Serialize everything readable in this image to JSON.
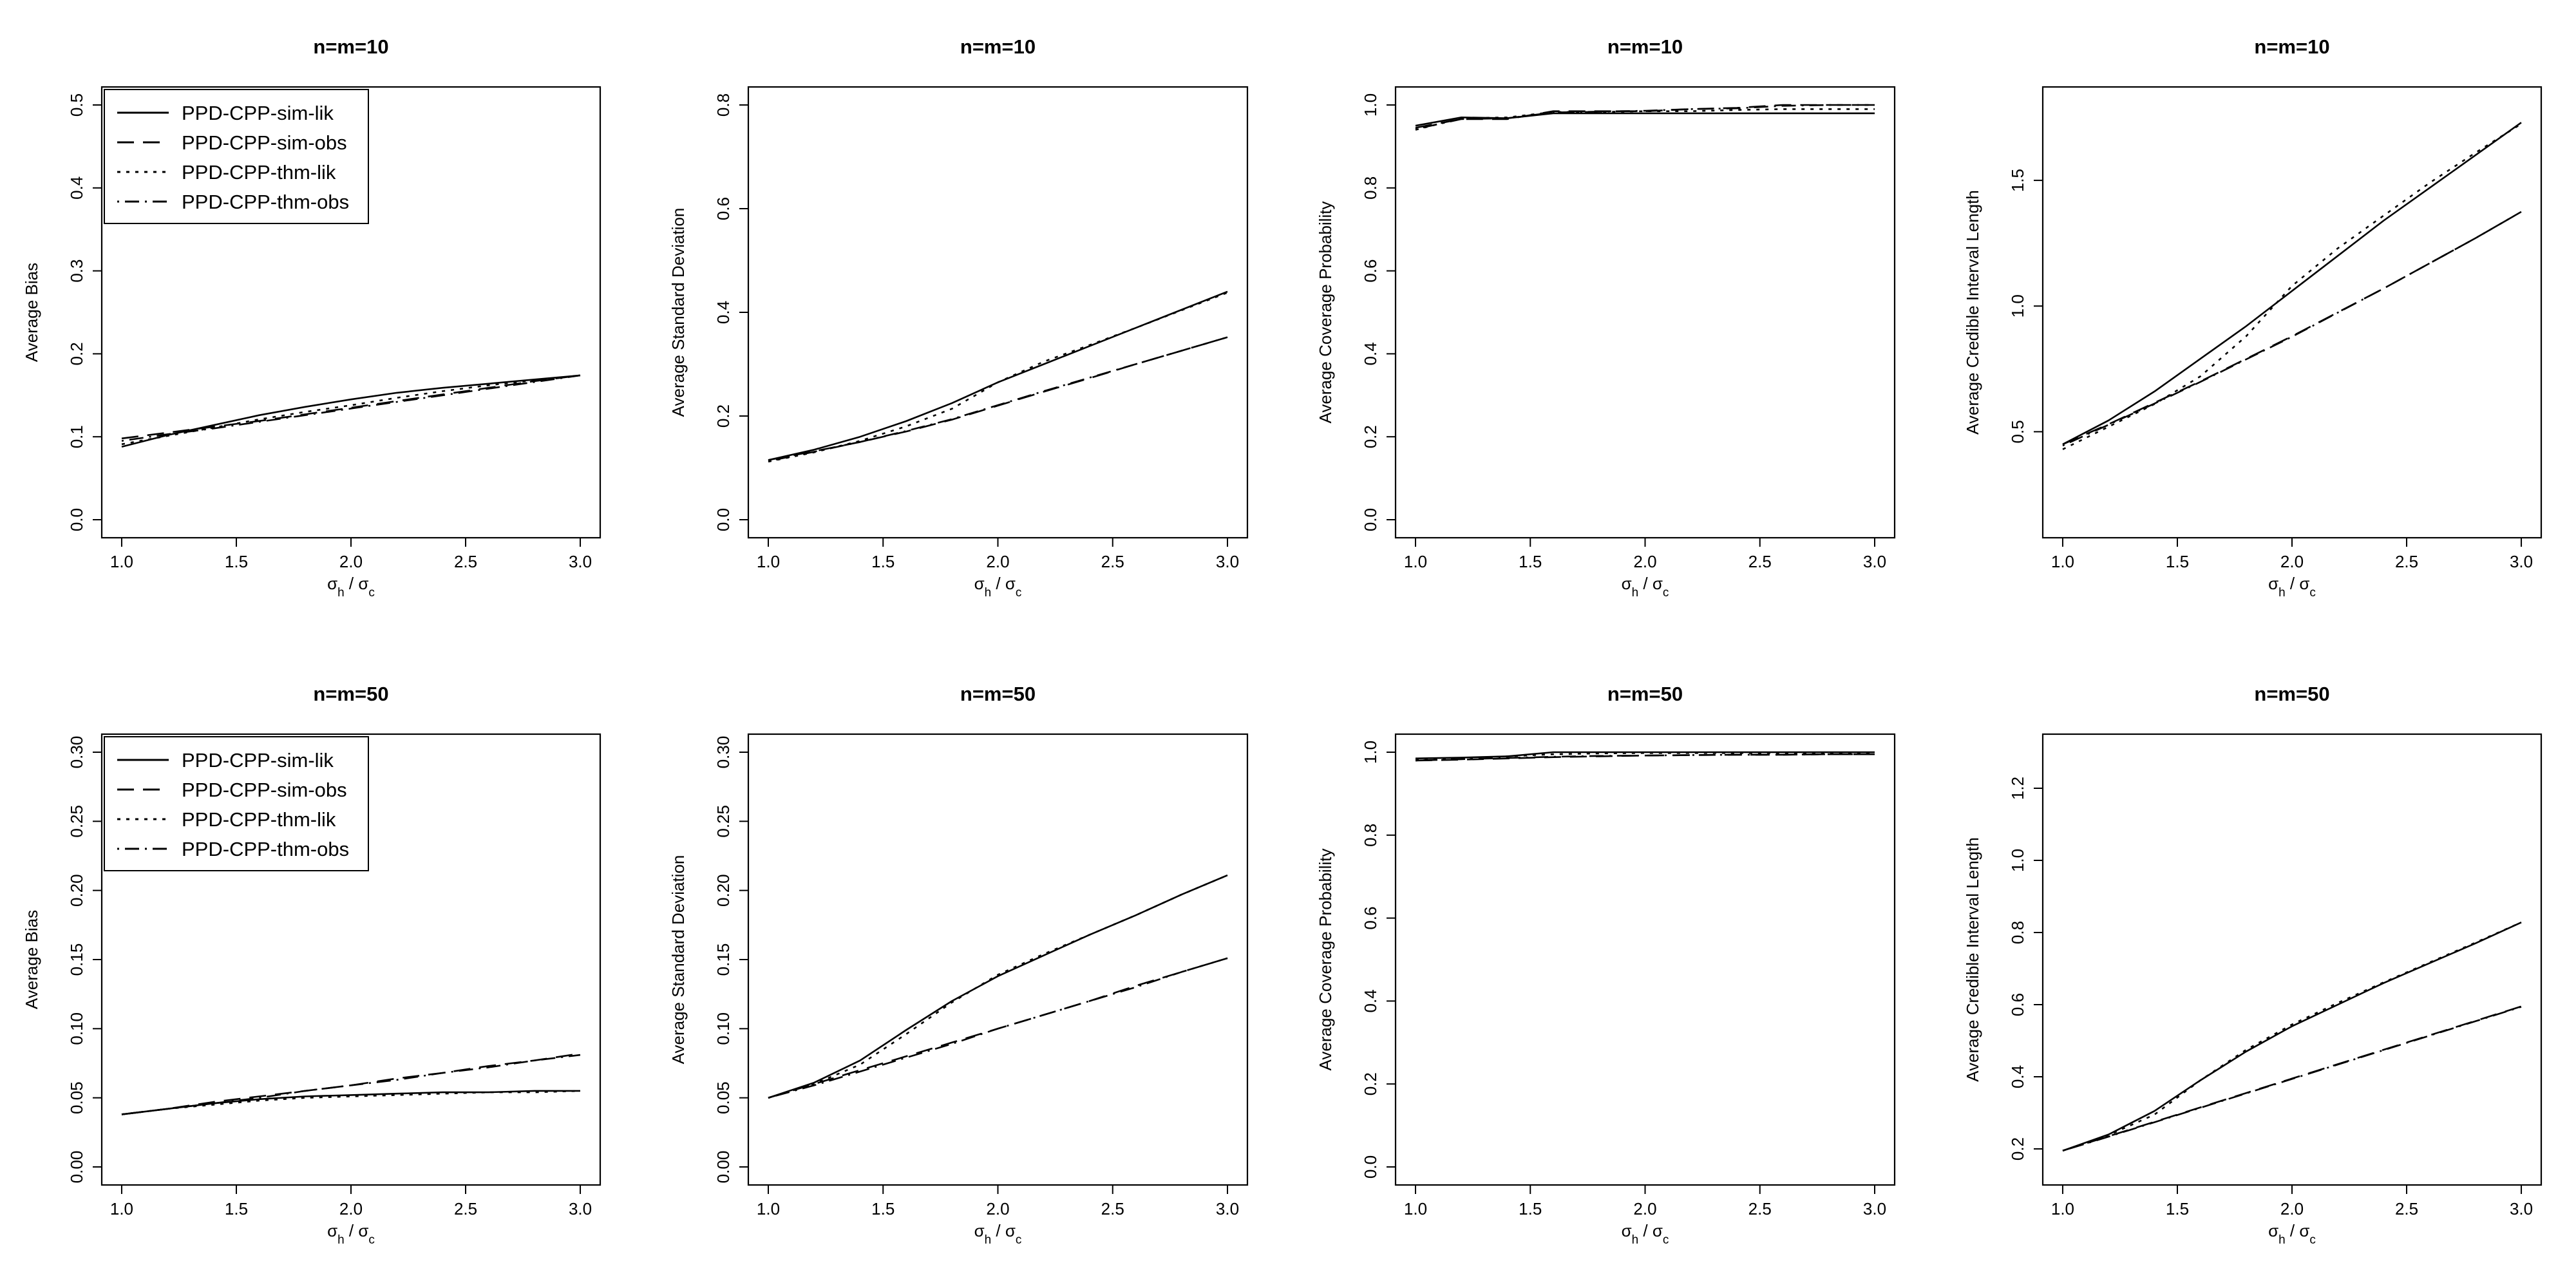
{
  "figure": {
    "charts": [
      {
        "title": "n=m=10",
        "ylabel": "Average Bias",
        "xlabel": "σ_h / σ_c"
      },
      {
        "title": "n=m=10",
        "ylabel": "Average Standard Deviation",
        "xlabel": "σ_h / σ_c"
      },
      {
        "title": "n=m=10",
        "ylabel": "Average Coverage Probability",
        "xlabel": "σ_h / σ_c"
      },
      {
        "title": "n=m=10",
        "ylabel": "Average Credible Interval Length",
        "xlabel": "σ_h / σ_c"
      },
      {
        "title": "n=m=50",
        "ylabel": "Average Bias",
        "xlabel": "σ_h / σ_c"
      },
      {
        "title": "n=m=50",
        "ylabel": "Average Standard Deviation",
        "xlabel": "σ_h / σ_c"
      },
      {
        "title": "n=m=50",
        "ylabel": "Average Coverage Probability",
        "xlabel": "σ_h / σ_c"
      },
      {
        "title": "n=m=50",
        "ylabel": "Average Credible Interval Length",
        "xlabel": "σ_h / σ_c"
      }
    ]
  },
  "chart_data": [
    {
      "type": "line",
      "title": "n=m=10",
      "xlabel": "σ_h / σ_c",
      "ylabel": "Average Bias",
      "xlim": [
        1,
        3
      ],
      "ylim": [
        0,
        0.5
      ],
      "xticks": [
        "1.0",
        "1.5",
        "2.0",
        "2.5",
        "3.0"
      ],
      "yticks": [
        "0.0",
        "0.1",
        "0.2",
        "0.3",
        "0.4",
        "0.5"
      ],
      "legend": "top-left",
      "x": [
        1.0,
        1.2,
        1.4,
        1.6,
        1.8,
        2.0,
        2.2,
        2.4,
        2.6,
        2.8,
        3.0
      ],
      "series": [
        {
          "name": "PPD-CPP-sim-lik",
          "dash": "solid",
          "values": [
            0.088,
            0.102,
            0.114,
            0.126,
            0.136,
            0.145,
            0.153,
            0.159,
            0.164,
            0.169,
            0.174
          ]
        },
        {
          "name": "PPD-CPP-sim-obs",
          "dash": "dashed",
          "values": [
            0.098,
            0.105,
            0.112,
            0.119,
            0.127,
            0.135,
            0.143,
            0.151,
            0.159,
            0.167,
            0.174
          ]
        },
        {
          "name": "PPD-CPP-thm-lik",
          "dash": "dotted",
          "values": [
            0.091,
            0.101,
            0.111,
            0.121,
            0.13,
            0.138,
            0.147,
            0.155,
            0.162,
            0.168,
            0.174
          ]
        },
        {
          "name": "PPD-CPP-thm-obs",
          "dash": "dotdash",
          "values": [
            0.095,
            0.103,
            0.11,
            0.118,
            0.126,
            0.134,
            0.142,
            0.15,
            0.158,
            0.166,
            0.174
          ]
        }
      ]
    },
    {
      "type": "line",
      "title": "n=m=10",
      "xlabel": "σ_h / σ_c",
      "ylabel": "Average Standard Deviation",
      "xlim": [
        1,
        3
      ],
      "ylim": [
        0,
        0.8
      ],
      "xticks": [
        "1.0",
        "1.5",
        "2.0",
        "2.5",
        "3.0"
      ],
      "yticks": [
        "0.0",
        "0.2",
        "0.4",
        "0.6",
        "0.8"
      ],
      "legend": "none",
      "x": [
        1.0,
        1.2,
        1.4,
        1.6,
        1.8,
        2.0,
        2.2,
        2.4,
        2.6,
        2.8,
        3.0
      ],
      "series": [
        {
          "name": "PPD-CPP-sim-lik",
          "dash": "solid",
          "values": [
            0.115,
            0.135,
            0.16,
            0.19,
            0.225,
            0.265,
            0.3,
            0.335,
            0.37,
            0.405,
            0.44
          ]
        },
        {
          "name": "PPD-CPP-sim-obs",
          "dash": "dashed",
          "values": [
            0.115,
            0.132,
            0.15,
            0.17,
            0.193,
            0.22,
            0.247,
            0.273,
            0.3,
            0.326,
            0.352
          ]
        },
        {
          "name": "PPD-CPP-thm-lik",
          "dash": "dotted",
          "values": [
            0.112,
            0.13,
            0.152,
            0.18,
            0.214,
            0.265,
            0.305,
            0.337,
            0.37,
            0.404,
            0.438
          ]
        },
        {
          "name": "PPD-CPP-thm-obs",
          "dash": "dotdash",
          "values": [
            0.113,
            0.131,
            0.15,
            0.171,
            0.194,
            0.221,
            0.248,
            0.274,
            0.3,
            0.326,
            0.352
          ]
        }
      ]
    },
    {
      "type": "line",
      "title": "n=m=10",
      "xlabel": "σ_h / σ_c",
      "ylabel": "Average Coverage Probability",
      "xlim": [
        1,
        3
      ],
      "ylim": [
        0,
        1
      ],
      "xticks": [
        "1.0",
        "1.5",
        "2.0",
        "2.5",
        "3.0"
      ],
      "yticks": [
        "0.0",
        "0.2",
        "0.4",
        "0.6",
        "0.8",
        "1.0"
      ],
      "legend": "none",
      "x": [
        1.0,
        1.2,
        1.4,
        1.6,
        1.8,
        2.0,
        2.2,
        2.4,
        2.6,
        2.8,
        3.0
      ],
      "series": [
        {
          "name": "PPD-CPP-sim-lik",
          "dash": "solid",
          "values": [
            0.95,
            0.97,
            0.968,
            0.98,
            0.98,
            0.98,
            0.98,
            0.98,
            0.98,
            0.98,
            0.98
          ]
        },
        {
          "name": "PPD-CPP-sim-obs",
          "dash": "dashed",
          "values": [
            0.945,
            0.966,
            0.966,
            0.985,
            0.985,
            0.985,
            0.99,
            0.993,
            1.0,
            1.0,
            1.0
          ]
        },
        {
          "name": "PPD-CPP-thm-lik",
          "dash": "dotted",
          "values": [
            0.94,
            0.968,
            0.97,
            0.983,
            0.983,
            0.985,
            0.985,
            0.988,
            0.99,
            0.99,
            0.99
          ]
        },
        {
          "name": "PPD-CPP-thm-obs",
          "dash": "dotdash",
          "values": [
            0.942,
            0.966,
            0.968,
            0.982,
            0.984,
            0.986,
            0.99,
            0.992,
            0.998,
            1.0,
            1.0
          ]
        }
      ]
    },
    {
      "type": "line",
      "title": "n=m=10",
      "xlabel": "σ_h / σ_c",
      "ylabel": "Average Credible Interval Length",
      "xlim": [
        1,
        3
      ],
      "ylim": [
        0.15,
        1.8
      ],
      "xticks": [
        "1.0",
        "1.5",
        "2.0",
        "2.5",
        "3.0"
      ],
      "yticks": [
        "0.5",
        "1.0",
        "1.5"
      ],
      "legend": "none",
      "x": [
        1.0,
        1.2,
        1.4,
        1.6,
        1.8,
        2.0,
        2.2,
        2.4,
        2.6,
        2.8,
        3.0
      ],
      "series": [
        {
          "name": "PPD-CPP-sim-lik",
          "dash": "solid",
          "values": [
            0.45,
            0.545,
            0.66,
            0.79,
            0.92,
            1.06,
            1.2,
            1.34,
            1.47,
            1.6,
            1.73
          ]
        },
        {
          "name": "PPD-CPP-sim-obs",
          "dash": "dashed",
          "values": [
            0.45,
            0.53,
            0.615,
            0.7,
            0.79,
            0.88,
            0.975,
            1.07,
            1.17,
            1.27,
            1.375
          ]
        },
        {
          "name": "PPD-CPP-thm-lik",
          "dash": "dotted",
          "values": [
            0.43,
            0.52,
            0.61,
            0.72,
            0.88,
            1.08,
            1.23,
            1.36,
            1.49,
            1.61,
            1.725
          ]
        },
        {
          "name": "PPD-CPP-thm-obs",
          "dash": "dotdash",
          "values": [
            0.445,
            0.528,
            0.612,
            0.698,
            0.788,
            0.878,
            0.974,
            1.07,
            1.17,
            1.27,
            1.375
          ]
        }
      ]
    },
    {
      "type": "line",
      "title": "n=m=50",
      "xlabel": "σ_h / σ_c",
      "ylabel": "Average Bias",
      "xlim": [
        1,
        3
      ],
      "ylim": [
        0,
        0.3
      ],
      "xticks": [
        "1.0",
        "1.5",
        "2.0",
        "2.5",
        "3.0"
      ],
      "yticks": [
        "0.00",
        "0.05",
        "0.10",
        "0.15",
        "0.20",
        "0.25",
        "0.30"
      ],
      "legend": "top-left",
      "x": [
        1.0,
        1.2,
        1.4,
        1.6,
        1.8,
        2.0,
        2.2,
        2.4,
        2.6,
        2.8,
        3.0
      ],
      "series": [
        {
          "name": "PPD-CPP-sim-lik",
          "dash": "solid",
          "values": [
            0.038,
            0.042,
            0.046,
            0.049,
            0.051,
            0.052,
            0.053,
            0.054,
            0.054,
            0.055,
            0.055
          ]
        },
        {
          "name": "PPD-CPP-sim-obs",
          "dash": "dashed",
          "values": [
            0.038,
            0.042,
            0.047,
            0.051,
            0.055,
            0.059,
            0.064,
            0.068,
            0.073,
            0.077,
            0.082
          ]
        },
        {
          "name": "PPD-CPP-thm-lik",
          "dash": "dotted",
          "values": [
            0.038,
            0.042,
            0.045,
            0.048,
            0.05,
            0.051,
            0.052,
            0.053,
            0.054,
            0.054,
            0.055
          ]
        },
        {
          "name": "PPD-CPP-thm-obs",
          "dash": "dotdash",
          "values": [
            0.038,
            0.042,
            0.046,
            0.05,
            0.055,
            0.059,
            0.063,
            0.068,
            0.072,
            0.077,
            0.081
          ]
        }
      ]
    },
    {
      "type": "line",
      "title": "n=m=50",
      "xlabel": "σ_h / σ_c",
      "ylabel": "Average Standard Deviation",
      "xlim": [
        1,
        3
      ],
      "ylim": [
        0,
        0.3
      ],
      "xticks": [
        "1.0",
        "1.5",
        "2.0",
        "2.5",
        "3.0"
      ],
      "yticks": [
        "0.00",
        "0.05",
        "0.10",
        "0.15",
        "0.20",
        "0.25",
        "0.30"
      ],
      "legend": "none",
      "x": [
        1.0,
        1.2,
        1.4,
        1.6,
        1.8,
        2.0,
        2.2,
        2.4,
        2.6,
        2.8,
        3.0
      ],
      "series": [
        {
          "name": "PPD-CPP-sim-lik",
          "dash": "solid",
          "values": [
            0.05,
            0.061,
            0.077,
            0.099,
            0.12,
            0.138,
            0.153,
            0.168,
            0.182,
            0.197,
            0.211
          ]
        },
        {
          "name": "PPD-CPP-sim-obs",
          "dash": "dashed",
          "values": [
            0.05,
            0.06,
            0.07,
            0.08,
            0.09,
            0.1,
            0.11,
            0.12,
            0.131,
            0.141,
            0.151
          ]
        },
        {
          "name": "PPD-CPP-thm-lik",
          "dash": "dotted",
          "values": [
            0.05,
            0.06,
            0.074,
            0.096,
            0.119,
            0.139,
            0.154,
            0.168,
            0.182,
            0.197,
            0.211
          ]
        },
        {
          "name": "PPD-CPP-thm-obs",
          "dash": "dotdash",
          "values": [
            0.05,
            0.059,
            0.069,
            0.079,
            0.089,
            0.1,
            0.11,
            0.12,
            0.13,
            0.141,
            0.151
          ]
        }
      ]
    },
    {
      "type": "line",
      "title": "n=m=50",
      "xlabel": "σ_h / σ_c",
      "ylabel": "Average Coverage Probability",
      "xlim": [
        1,
        3
      ],
      "ylim": [
        0,
        1
      ],
      "xticks": [
        "1.0",
        "1.5",
        "2.0",
        "2.5",
        "3.0"
      ],
      "yticks": [
        "0.0",
        "0.2",
        "0.4",
        "0.6",
        "0.8",
        "1.0"
      ],
      "legend": "none",
      "x": [
        1.0,
        1.2,
        1.4,
        1.6,
        1.8,
        2.0,
        2.2,
        2.4,
        2.6,
        2.8,
        3.0
      ],
      "series": [
        {
          "name": "PPD-CPP-sim-lik",
          "dash": "solid",
          "values": [
            0.985,
            0.987,
            0.99,
            1.0,
            1.0,
            1.0,
            1.0,
            1.0,
            1.0,
            1.0,
            1.0
          ]
        },
        {
          "name": "PPD-CPP-sim-obs",
          "dash": "dashed",
          "values": [
            0.98,
            0.982,
            0.985,
            0.988,
            0.99,
            0.992,
            0.993,
            0.994,
            0.994,
            0.995,
            0.995
          ]
        },
        {
          "name": "PPD-CPP-thm-lik",
          "dash": "dotted",
          "values": [
            0.983,
            0.986,
            0.99,
            0.995,
            0.997,
            0.998,
            0.998,
            0.998,
            0.998,
            0.998,
            0.998
          ]
        },
        {
          "name": "PPD-CPP-thm-obs",
          "dash": "dotdash",
          "values": [
            0.98,
            0.983,
            0.986,
            0.989,
            0.991,
            0.992,
            0.993,
            0.994,
            0.994,
            0.995,
            0.995
          ]
        }
      ]
    },
    {
      "type": "line",
      "title": "n=m=50",
      "xlabel": "σ_h / σ_c",
      "ylabel": "Average Credible Interval Length",
      "xlim": [
        1,
        3
      ],
      "ylim": [
        0.15,
        1.3
      ],
      "xticks": [
        "1.0",
        "1.5",
        "2.0",
        "2.5",
        "3.0"
      ],
      "yticks": [
        "0.2",
        "0.4",
        "0.6",
        "0.8",
        "1.0",
        "1.2"
      ],
      "legend": "none",
      "x": [
        1.0,
        1.2,
        1.4,
        1.6,
        1.8,
        2.0,
        2.2,
        2.4,
        2.6,
        2.8,
        3.0
      ],
      "series": [
        {
          "name": "PPD-CPP-sim-lik",
          "dash": "solid",
          "values": [
            0.195,
            0.24,
            0.305,
            0.39,
            0.47,
            0.54,
            0.6,
            0.66,
            0.715,
            0.77,
            0.828
          ]
        },
        {
          "name": "PPD-CPP-sim-obs",
          "dash": "dashed",
          "values": [
            0.195,
            0.235,
            0.275,
            0.315,
            0.355,
            0.395,
            0.435,
            0.475,
            0.515,
            0.555,
            0.595
          ]
        },
        {
          "name": "PPD-CPP-thm-lik",
          "dash": "dotted",
          "values": [
            0.195,
            0.238,
            0.295,
            0.39,
            0.475,
            0.545,
            0.605,
            0.662,
            0.717,
            0.772,
            0.828
          ]
        },
        {
          "name": "PPD-CPP-thm-obs",
          "dash": "dotdash",
          "values": [
            0.195,
            0.234,
            0.274,
            0.314,
            0.354,
            0.394,
            0.434,
            0.474,
            0.514,
            0.554,
            0.594
          ]
        }
      ]
    }
  ]
}
